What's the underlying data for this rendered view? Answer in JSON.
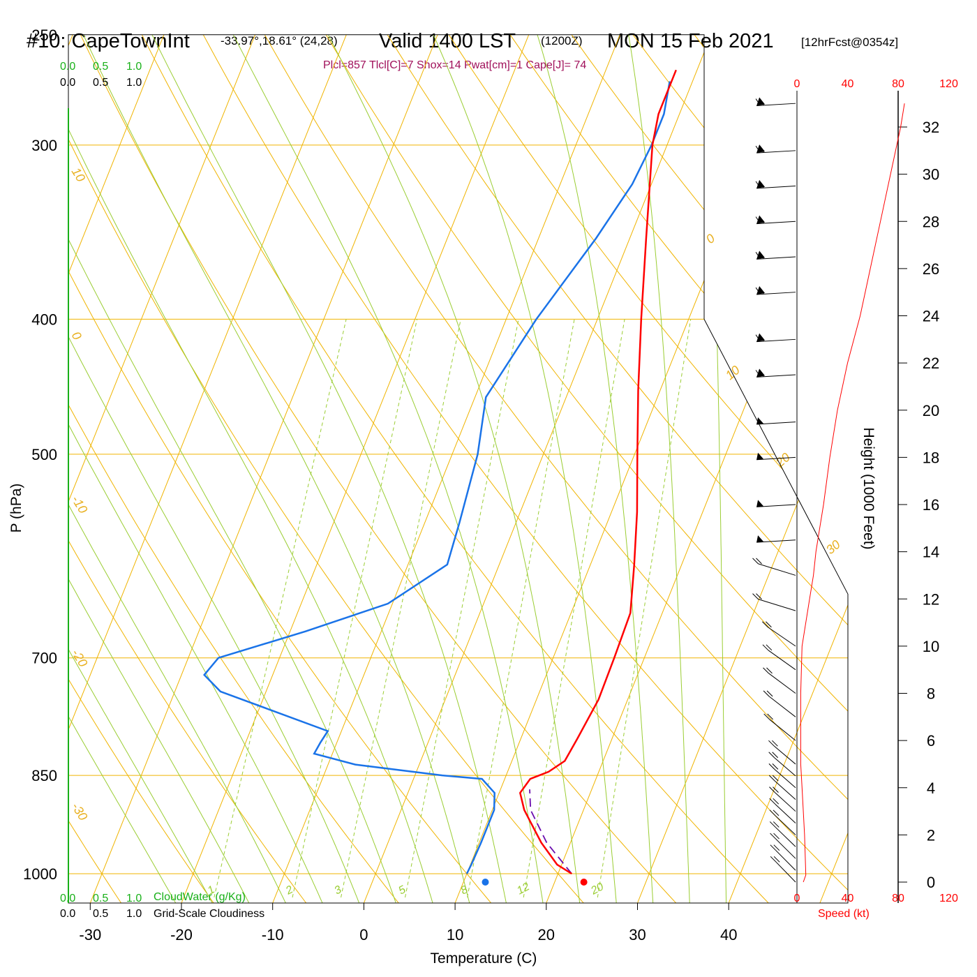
{
  "header": {
    "station": "#10: CapeTownInt",
    "coords": "-33.97°,18.61° (24,28)",
    "valid": "Valid 1400 LST",
    "utc": "(1200Z)",
    "date": "MON 15 Feb 2021",
    "forecast": "[12hrFcst@0354z]",
    "indices": "Plcl=857 Tlcl[C]=7 Shox=14 Pwat[cm]=1 Cape[J]= 74"
  },
  "colors": {
    "temperature": "#ff0000",
    "dewpoint": "#1a73e8",
    "isotherm": "#f0b400",
    "dry_adiabat": "#f0b400",
    "moist_adiabat": "#9acd32",
    "mixing_ratio": "#9acd32",
    "parcel": "#6a0dad",
    "cloudwater": "#18b018",
    "wind_speed": "#ff0000"
  },
  "chart_data": {
    "type": "line",
    "subtype": "skew-t log-p",
    "xlabel": "Temperature (C)",
    "ylabel": "P (hPa)",
    "y2label": "Height (1000 Feet)",
    "x_ticks": [
      "-30",
      "-20",
      "-10",
      "0",
      "10",
      "20",
      "30",
      "40"
    ],
    "p_ticks": [
      "250",
      "300",
      "400",
      "500",
      "700",
      "850",
      "1000"
    ],
    "height_ticks": [
      "0",
      "2",
      "4",
      "6",
      "8",
      "10",
      "12",
      "14",
      "16",
      "18",
      "20",
      "22",
      "24",
      "26",
      "28",
      "30",
      "32"
    ],
    "speed_ticks": [
      "0",
      "40",
      "80",
      "120"
    ],
    "speed_label": "Speed (kt)",
    "top_scale_cloudwater": [
      "0.0",
      "0.5",
      "1.0"
    ],
    "top_scale_cloudiness": [
      "0.0",
      "0.5",
      "1.0"
    ],
    "bottom_cloudwater_label": "CloudWater (g/Kg)",
    "bottom_cloudiness_label": "Grid-Scale Cloudiness",
    "isotherm_labels": [
      "10",
      "0",
      "-10",
      "-20",
      "-30",
      "0",
      "10",
      "20",
      "30"
    ],
    "mixing_ratio_labels": [
      "1",
      "2",
      "3",
      "5",
      "8",
      "12",
      "20"
    ],
    "surface_temperature_c": 23.2,
    "surface_dewpoint_c": 12.4,
    "temperature_profile": [
      {
        "p": 1000,
        "t": 21.5
      },
      {
        "p": 985,
        "t": 19.5
      },
      {
        "p": 950,
        "t": 16.8
      },
      {
        "p": 900,
        "t": 13.5
      },
      {
        "p": 875,
        "t": 12.3
      },
      {
        "p": 855,
        "t": 12.8
      },
      {
        "p": 845,
        "t": 14.5
      },
      {
        "p": 830,
        "t": 15.8
      },
      {
        "p": 800,
        "t": 16.2
      },
      {
        "p": 750,
        "t": 16.8
      },
      {
        "p": 700,
        "t": 16.7
      },
      {
        "p": 650,
        "t": 16.5
      },
      {
        "p": 600,
        "t": 14.8
      },
      {
        "p": 550,
        "t": 12.8
      },
      {
        "p": 500,
        "t": 10.3
      },
      {
        "p": 450,
        "t": 7.6
      },
      {
        "p": 400,
        "t": 4.8
      },
      {
        "p": 350,
        "t": 1.8
      },
      {
        "p": 300,
        "t": -1.6
      },
      {
        "p": 285,
        "t": -2.3
      },
      {
        "p": 265,
        "t": -2.3
      }
    ],
    "dewpoint_profile": [
      {
        "p": 1000,
        "t": 10.0
      },
      {
        "p": 985,
        "t": 10.1
      },
      {
        "p": 950,
        "t": 10.2
      },
      {
        "p": 900,
        "t": 10.2
      },
      {
        "p": 875,
        "t": 9.5
      },
      {
        "p": 855,
        "t": 7.5
      },
      {
        "p": 850,
        "t": 3.0
      },
      {
        "p": 835,
        "t": -7.0
      },
      {
        "p": 820,
        "t": -12.0
      },
      {
        "p": 805,
        "t": -11.8
      },
      {
        "p": 790,
        "t": -11.5
      },
      {
        "p": 740,
        "t": -25.0
      },
      {
        "p": 720,
        "t": -27.5
      },
      {
        "p": 700,
        "t": -26.7
      },
      {
        "p": 670,
        "t": -18.3
      },
      {
        "p": 640,
        "t": -10.5
      },
      {
        "p": 600,
        "t": -5.7
      },
      {
        "p": 560,
        "t": -6.2
      },
      {
        "p": 500,
        "t": -7.2
      },
      {
        "p": 455,
        "t": -8.8
      },
      {
        "p": 400,
        "t": -6.7
      },
      {
        "p": 350,
        "t": -3.7
      },
      {
        "p": 320,
        "t": -2.1
      },
      {
        "p": 300,
        "t": -1.7
      },
      {
        "p": 285,
        "t": -1.7
      },
      {
        "p": 270,
        "t": -2.5
      }
    ],
    "parcel_profile": [
      {
        "p": 1000,
        "t": 21.5
      },
      {
        "p": 950,
        "t": 17.4
      },
      {
        "p": 900,
        "t": 14.2
      },
      {
        "p": 870,
        "t": 13.2
      }
    ],
    "wind_speed_profile": [
      {
        "h": 0.0,
        "kt": 5
      },
      {
        "h": 0.3,
        "kt": 7
      },
      {
        "h": 2.0,
        "kt": 6
      },
      {
        "h": 4.0,
        "kt": 4
      },
      {
        "h": 5.0,
        "kt": 3
      },
      {
        "h": 6.0,
        "kt": 3
      },
      {
        "h": 8.0,
        "kt": 3
      },
      {
        "h": 10.0,
        "kt": 4
      },
      {
        "h": 11.0,
        "kt": 7
      },
      {
        "h": 12.0,
        "kt": 10
      },
      {
        "h": 13.0,
        "kt": 13
      },
      {
        "h": 14.0,
        "kt": 15
      },
      {
        "h": 15.0,
        "kt": 18
      },
      {
        "h": 16.0,
        "kt": 21
      },
      {
        "h": 18.0,
        "kt": 26
      },
      {
        "h": 20.0,
        "kt": 32
      },
      {
        "h": 22.0,
        "kt": 40
      },
      {
        "h": 24.0,
        "kt": 50
      },
      {
        "h": 26.0,
        "kt": 58
      },
      {
        "h": 28.0,
        "kt": 66
      },
      {
        "h": 30.0,
        "kt": 74
      },
      {
        "h": 32.0,
        "kt": 82
      },
      {
        "h": 33.0,
        "kt": 85
      }
    ],
    "wind_barb_heights": [
      33,
      31,
      29.5,
      28,
      26.5,
      25,
      23,
      21.5,
      19.5,
      18,
      16,
      14.5,
      13,
      11.5,
      10,
      9,
      8,
      7,
      6,
      5,
      4.5,
      4,
      3.5,
      3,
      2.5,
      2,
      1.5,
      1,
      0.5,
      0
    ]
  }
}
